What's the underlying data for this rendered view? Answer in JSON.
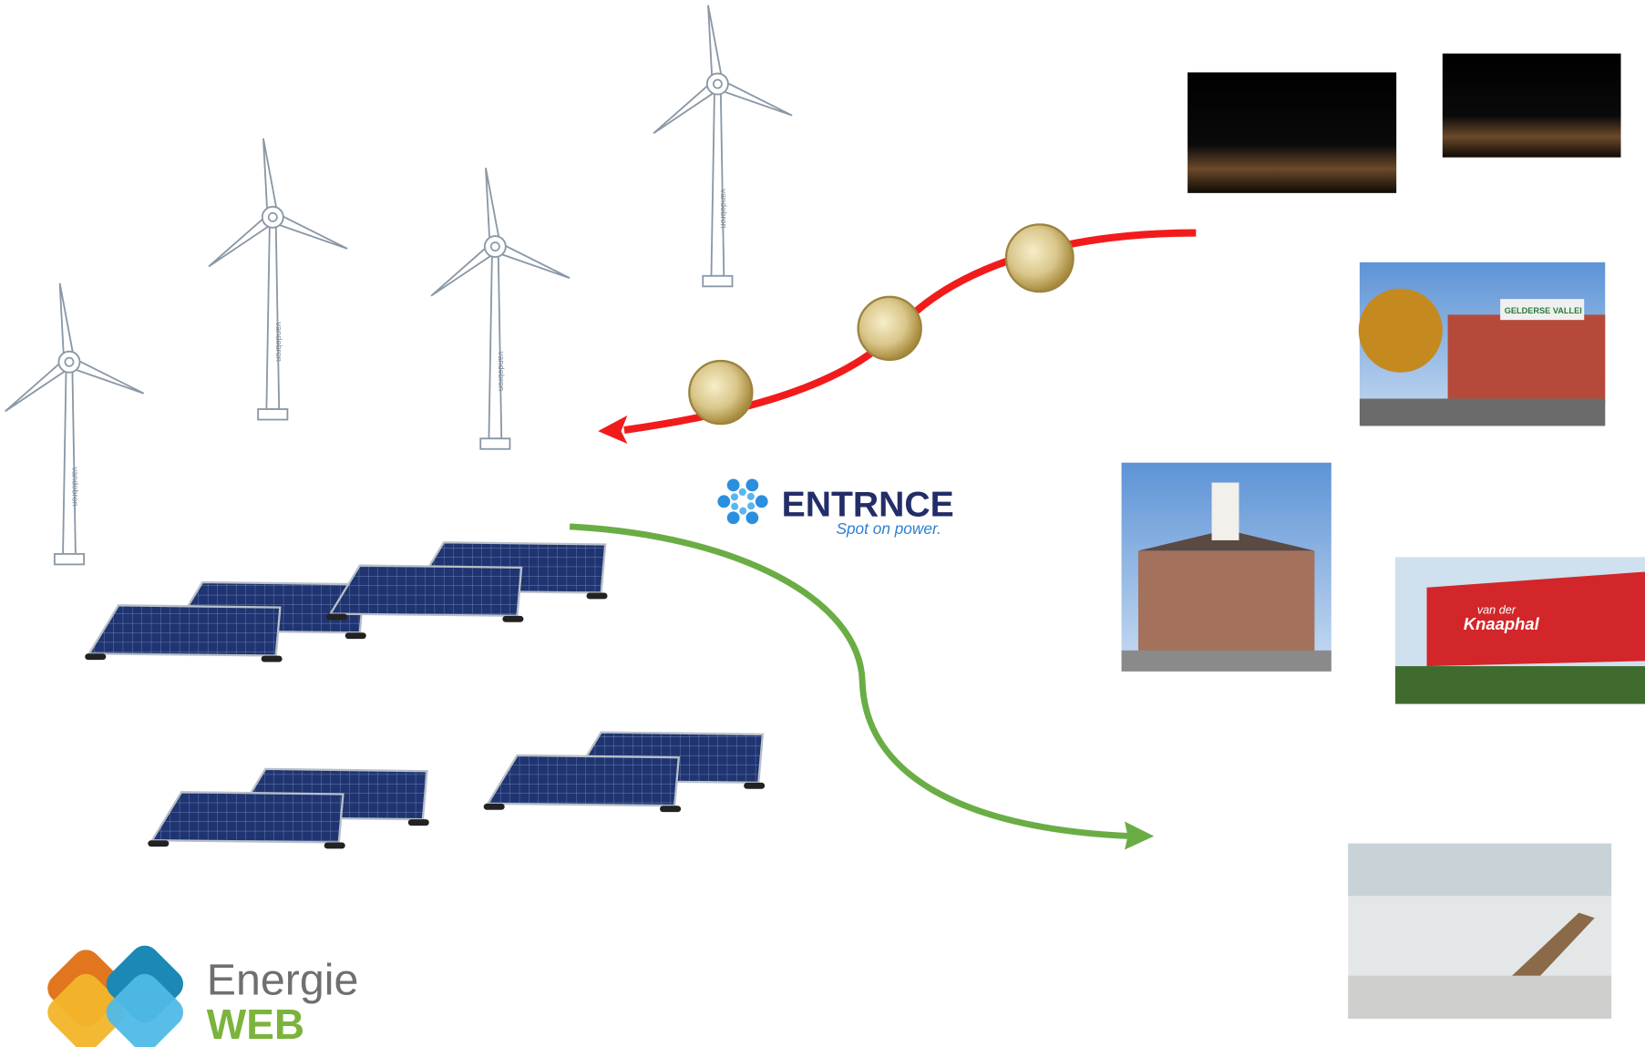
{
  "turbines": [
    {
      "label": "vandebron"
    },
    {
      "label": "vandebron"
    },
    {
      "label": "vandebron"
    },
    {
      "label": "vandebron"
    }
  ],
  "entrnce_logo": {
    "name": "ENTRNCE",
    "tagline": "Spot on power."
  },
  "energieweb_logo": {
    "line1": "Energie",
    "line2": "WEB"
  },
  "photos": {
    "hospital_sign": "GELDERSE VALLEI",
    "hall_sign_line1": "van der",
    "hall_sign_line2": "Knaaphal"
  }
}
